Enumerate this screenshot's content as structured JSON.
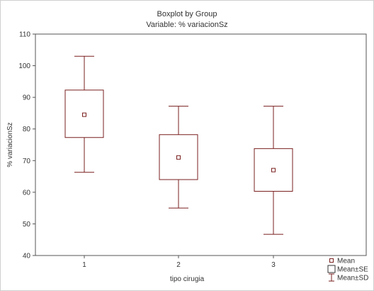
{
  "chart_data": {
    "type": "boxplot",
    "title": "Boxplot by Group",
    "subtitle": "Variable: % variacionSz",
    "xlabel": "tipo cirugia",
    "ylabel": "% variacionSz",
    "ylim": [
      40,
      110
    ],
    "yticks": [
      40,
      50,
      60,
      70,
      80,
      90,
      100,
      110
    ],
    "categories": [
      "1",
      "2",
      "3"
    ],
    "groups": [
      {
        "category": "1",
        "mean": 84.5,
        "se_low": 77.3,
        "se_high": 92.3,
        "sd_low": 66.3,
        "sd_high": 103.0
      },
      {
        "category": "2",
        "mean": 71.0,
        "se_low": 64.0,
        "se_high": 78.2,
        "sd_low": 55.0,
        "sd_high": 87.2
      },
      {
        "category": "3",
        "mean": 67.0,
        "se_low": 60.3,
        "se_high": 73.8,
        "sd_low": 46.7,
        "sd_high": 87.2
      }
    ],
    "legend": {
      "position": "bottom-right",
      "items": [
        {
          "label": "Mean",
          "marker": "small-square"
        },
        {
          "label": "Mean±SE",
          "marker": "box"
        },
        {
          "label": "Mean±SD",
          "marker": "whisker"
        }
      ]
    },
    "grid": false,
    "colors": {
      "marks": "#7a1f1f",
      "frame": "#555555",
      "text": "#333333"
    }
  }
}
